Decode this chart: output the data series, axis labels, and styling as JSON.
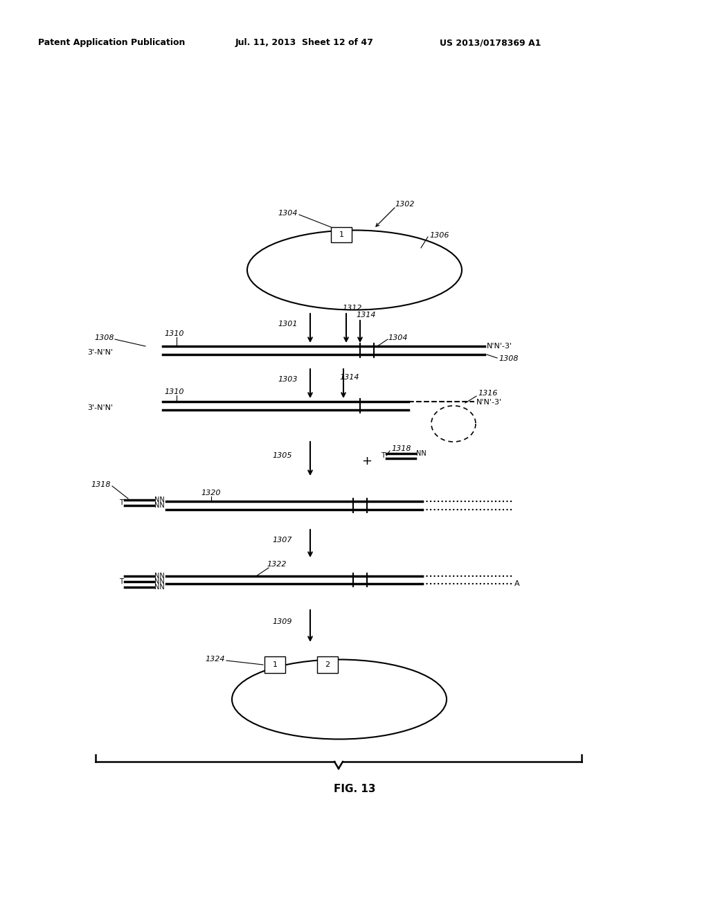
{
  "title": "FIG. 13",
  "header_left": "Patent Application Publication",
  "header_mid": "Jul. 11, 2013  Sheet 12 of 47",
  "header_right": "US 2013/0178369 A1",
  "bg_color": "#ffffff",
  "line_color": "#000000",
  "fig_width": 1024,
  "fig_height": 1320
}
